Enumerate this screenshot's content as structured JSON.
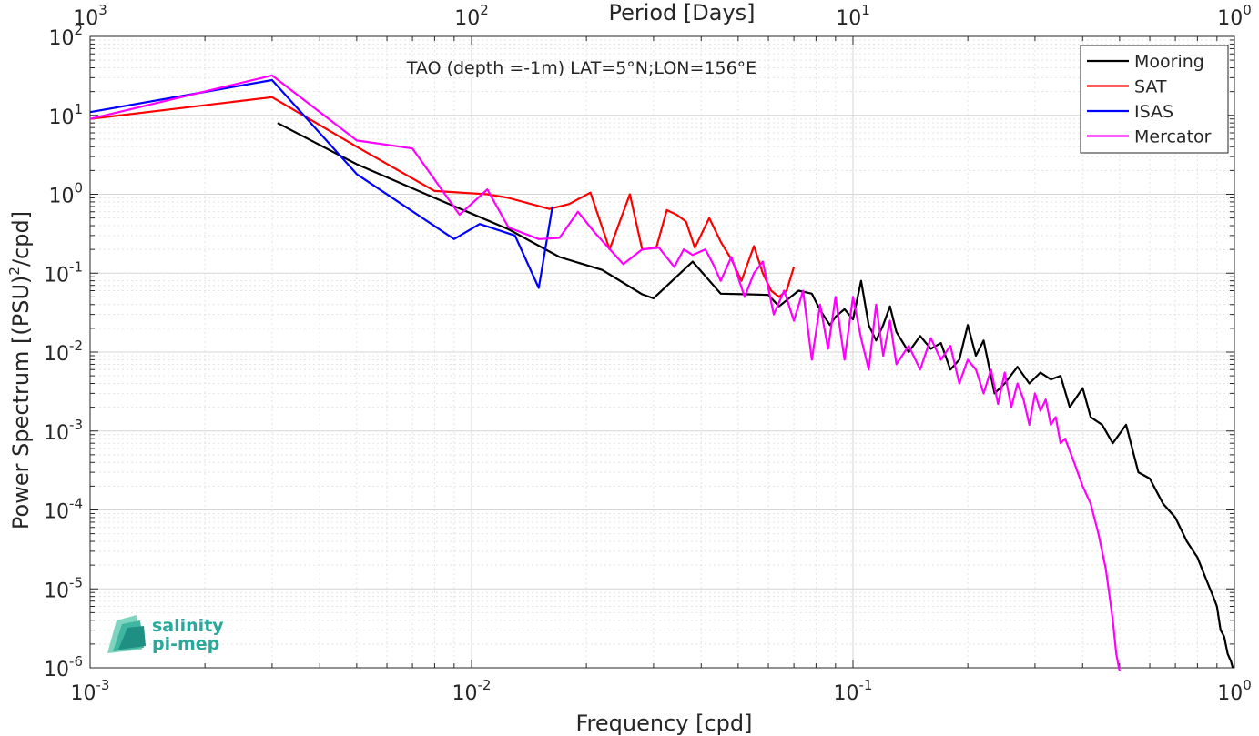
{
  "chart_data": {
    "type": "line",
    "title": "TAO (depth =-1m) LAT=5°N;LON=156°E",
    "xlabel": "Frequency [cpd]",
    "ylabel": "Power Spectrum [(PSU)²/cpd]",
    "ylabel_base": "Power Spectrum [(PSU)",
    "ylabel_sup": "2",
    "ylabel_tail": "/cpd]",
    "x2label": "Period [Days]",
    "xscale": "log",
    "yscale": "log",
    "xlim": [
      0.001,
      1
    ],
    "ylim": [
      1e-06,
      100
    ],
    "grid": true,
    "legend_location": "top-right",
    "x_ticks": [
      {
        "base": "10",
        "exp": "-3"
      },
      {
        "base": "10",
        "exp": "-2"
      },
      {
        "base": "10",
        "exp": "-1"
      },
      {
        "base": "10",
        "exp": "0"
      }
    ],
    "x2_ticks": [
      {
        "base": "10",
        "exp": "3"
      },
      {
        "base": "10",
        "exp": "2"
      },
      {
        "base": "10",
        "exp": "1"
      },
      {
        "base": "10",
        "exp": "0"
      }
    ],
    "y_ticks": [
      {
        "base": "10",
        "exp": "-6"
      },
      {
        "base": "10",
        "exp": "-5"
      },
      {
        "base": "10",
        "exp": "-4"
      },
      {
        "base": "10",
        "exp": "-3"
      },
      {
        "base": "10",
        "exp": "-2"
      },
      {
        "base": "10",
        "exp": "-1"
      },
      {
        "base": "10",
        "exp": "0"
      },
      {
        "base": "10",
        "exp": "1"
      },
      {
        "base": "10",
        "exp": "2"
      }
    ],
    "series": [
      {
        "name": "Mooring",
        "color": "#000000",
        "x": [
          0.0031,
          0.005,
          0.008,
          0.0125,
          0.017,
          0.022,
          0.028,
          0.03,
          0.036,
          0.038,
          0.045,
          0.053,
          0.06,
          0.064,
          0.068,
          0.072,
          0.078,
          0.082,
          0.087,
          0.09,
          0.095,
          0.1,
          0.105,
          0.11,
          0.115,
          0.12,
          0.125,
          0.13,
          0.14,
          0.15,
          0.16,
          0.17,
          0.18,
          0.19,
          0.2,
          0.21,
          0.22,
          0.235,
          0.25,
          0.27,
          0.29,
          0.31,
          0.33,
          0.35,
          0.37,
          0.4,
          0.42,
          0.45,
          0.48,
          0.52,
          0.56,
          0.6,
          0.65,
          0.7,
          0.75,
          0.8,
          0.85,
          0.88,
          0.9,
          0.92,
          0.94,
          0.96,
          0.98,
          0.99
        ],
        "y": [
          8,
          2.4,
          0.9,
          0.36,
          0.16,
          0.11,
          0.054,
          0.048,
          0.11,
          0.14,
          0.055,
          0.054,
          0.053,
          0.038,
          0.048,
          0.06,
          0.055,
          0.034,
          0.022,
          0.028,
          0.035,
          0.026,
          0.08,
          0.022,
          0.014,
          0.022,
          0.038,
          0.018,
          0.01,
          0.016,
          0.011,
          0.013,
          0.006,
          0.008,
          0.022,
          0.009,
          0.014,
          0.003,
          0.004,
          0.0065,
          0.004,
          0.0055,
          0.0045,
          0.005,
          0.002,
          0.0035,
          0.0015,
          0.0012,
          0.0007,
          0.0012,
          0.0003,
          0.00025,
          0.00012,
          8e-05,
          4e-05,
          2.5e-05,
          1.2e-05,
          8e-06,
          6e-06,
          3e-06,
          2.5e-06,
          1.5e-06,
          1.2e-06,
          1e-06
        ]
      },
      {
        "name": "SAT",
        "color": "#ff0000",
        "x": [
          0.001,
          0.003,
          0.005,
          0.008,
          0.011,
          0.0125,
          0.016,
          0.018,
          0.0205,
          0.023,
          0.026,
          0.028,
          0.0305,
          0.0325,
          0.0345,
          0.0365,
          0.0385,
          0.042,
          0.045,
          0.048,
          0.051,
          0.055,
          0.058,
          0.061,
          0.064,
          0.067,
          0.07
        ],
        "y": [
          9,
          17,
          4,
          1.1,
          1.0,
          0.9,
          0.65,
          0.75,
          1.05,
          0.2,
          1.0,
          0.2,
          0.21,
          0.63,
          0.55,
          0.45,
          0.21,
          0.5,
          0.25,
          0.15,
          0.08,
          0.22,
          0.1,
          0.06,
          0.05,
          0.06,
          0.12
        ]
      },
      {
        "name": "ISAS",
        "color": "#0000ff",
        "x": [
          0.001,
          0.003,
          0.005,
          0.009,
          0.0105,
          0.013,
          0.015,
          0.0163
        ],
        "y": [
          11,
          28,
          1.8,
          0.27,
          0.42,
          0.3,
          0.065,
          0.7
        ]
      },
      {
        "name": "Mercator",
        "color": "#ff00ff",
        "x": [
          0.001,
          0.003,
          0.005,
          0.007,
          0.0093,
          0.011,
          0.0125,
          0.015,
          0.017,
          0.019,
          0.021,
          0.025,
          0.028,
          0.031,
          0.034,
          0.036,
          0.038,
          0.041,
          0.043,
          0.045,
          0.048,
          0.052,
          0.055,
          0.058,
          0.062,
          0.066,
          0.07,
          0.074,
          0.078,
          0.082,
          0.086,
          0.09,
          0.095,
          0.1,
          0.105,
          0.11,
          0.115,
          0.12,
          0.125,
          0.13,
          0.14,
          0.15,
          0.16,
          0.17,
          0.18,
          0.19,
          0.2,
          0.21,
          0.22,
          0.23,
          0.24,
          0.25,
          0.26,
          0.27,
          0.28,
          0.29,
          0.3,
          0.31,
          0.32,
          0.33,
          0.34,
          0.35,
          0.36,
          0.38,
          0.4,
          0.42,
          0.44,
          0.46,
          0.47,
          0.48,
          0.49,
          0.5
        ],
        "y": [
          9,
          32,
          4.8,
          3.8,
          0.55,
          1.15,
          0.38,
          0.27,
          0.28,
          0.6,
          0.33,
          0.13,
          0.2,
          0.21,
          0.12,
          0.2,
          0.17,
          0.2,
          0.13,
          0.08,
          0.16,
          0.05,
          0.1,
          0.14,
          0.03,
          0.06,
          0.025,
          0.06,
          0.008,
          0.04,
          0.011,
          0.05,
          0.008,
          0.05,
          0.015,
          0.006,
          0.04,
          0.009,
          0.025,
          0.007,
          0.012,
          0.006,
          0.015,
          0.008,
          0.012,
          0.004,
          0.008,
          0.006,
          0.003,
          0.006,
          0.0022,
          0.0055,
          0.002,
          0.004,
          0.0025,
          0.0012,
          0.003,
          0.0018,
          0.0025,
          0.0012,
          0.0015,
          0.0007,
          0.0008,
          0.0004,
          0.0002,
          0.00012,
          5e-05,
          1.8e-05,
          8.5e-06,
          4e-06,
          1.5e-06,
          9e-07
        ]
      }
    ]
  },
  "logo": {
    "line1": "salinity",
    "line2": "pi-mep",
    "color": "#2aa89a"
  }
}
